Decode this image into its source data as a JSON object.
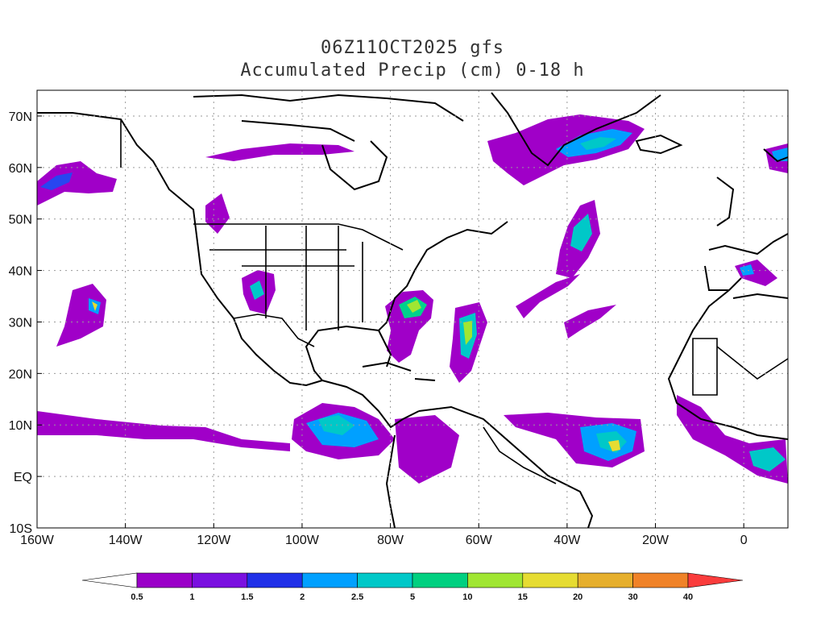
{
  "title": {
    "line1": "06Z11OCT2025 gfs",
    "line2": "Accumulated Precip (cm) 0-18 h"
  },
  "map": {
    "lon_range": [
      -160,
      10
    ],
    "lat_range": [
      -10,
      75
    ],
    "lon_ticks": [
      "160W",
      "140W",
      "120W",
      "100W",
      "80W",
      "60W",
      "40W",
      "20W",
      "0"
    ],
    "lat_ticks": [
      "10S",
      "EQ",
      "10N",
      "20N",
      "30N",
      "40N",
      "50N",
      "60N",
      "70N"
    ],
    "grid": "dotted"
  },
  "colorbar": {
    "labels": [
      "0.5",
      "1",
      "1.5",
      "2",
      "2.5",
      "5",
      "10",
      "15",
      "20",
      "30",
      "40"
    ],
    "colors": [
      "#ffffff",
      "#9a00c8",
      "#7a10e0",
      "#2030e8",
      "#00a0ff",
      "#00c8c8",
      "#00d080",
      "#a0e632",
      "#e6dc32",
      "#e6af2d",
      "#f08228",
      "#fa3c3c"
    ]
  },
  "precip_colors": {
    "c1": "#a000c8",
    "c2": "#8218e6",
    "c3": "#2846f0",
    "c4": "#00a0ff",
    "c5": "#00c8c8",
    "c6": "#00d28c",
    "c7": "#a0e632",
    "c8": "#e6dc32"
  }
}
